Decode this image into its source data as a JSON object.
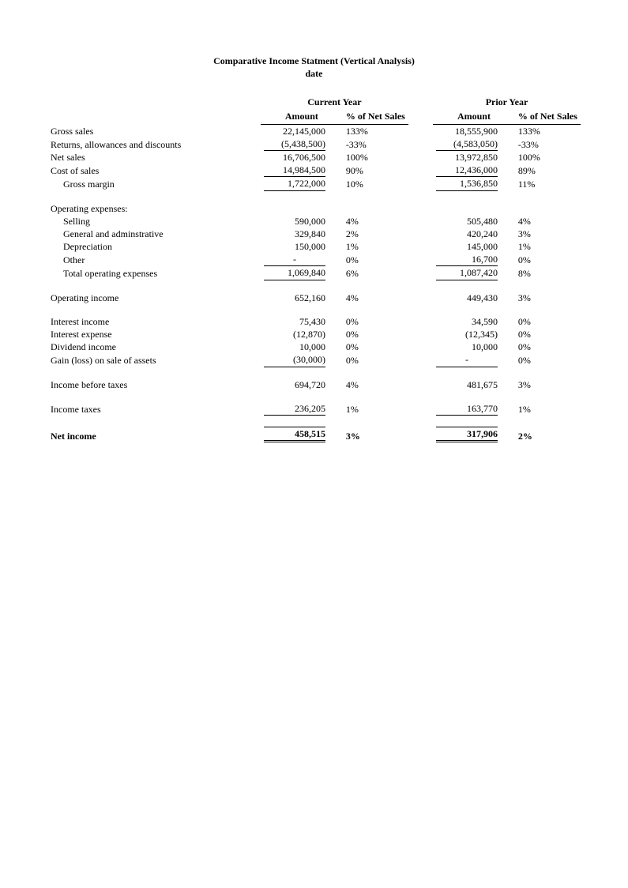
{
  "title": "Comparative Income Statment (Vertical Analysis)",
  "subtitle": "date",
  "headers": {
    "current_year": "Current Year",
    "prior_year": "Prior Year",
    "amount": "Amount",
    "pct": "% of Net Sales"
  },
  "labels": {
    "gross_sales": "Gross sales",
    "returns": "Returns, allowances and discounts",
    "net_sales": "Net sales",
    "cost_of_sales": "Cost of sales",
    "gross_margin": "Gross margin",
    "operating_expenses": "Operating expenses:",
    "selling": "Selling",
    "g_and_a": "General and adminstrative",
    "depreciation": "Depreciation",
    "other": "Other",
    "total_op_exp": "Total operating expenses",
    "operating_income": "Operating income",
    "interest_income": "Interest income",
    "interest_expense": "Interest expense",
    "dividend_income": "Dividend income",
    "gain_loss": "Gain (loss) on sale of assets",
    "income_before_taxes": "Income before taxes",
    "income_taxes": "Income taxes",
    "net_income": "Net income"
  },
  "current": {
    "gross_sales": {
      "amt": "22,145,000",
      "pct": "133%"
    },
    "returns": {
      "amt": "(5,438,500)",
      "pct": "-33%"
    },
    "net_sales": {
      "amt": "16,706,500",
      "pct": "100%"
    },
    "cost_of_sales": {
      "amt": "14,984,500",
      "pct": "90%"
    },
    "gross_margin": {
      "amt": "1,722,000",
      "pct": "10%"
    },
    "selling": {
      "amt": "590,000",
      "pct": "4%"
    },
    "g_and_a": {
      "amt": "329,840",
      "pct": "2%"
    },
    "depreciation": {
      "amt": "150,000",
      "pct": "1%"
    },
    "other": {
      "amt": "-",
      "pct": "0%"
    },
    "total_op_exp": {
      "amt": "1,069,840",
      "pct": "6%"
    },
    "operating_income": {
      "amt": "652,160",
      "pct": "4%"
    },
    "interest_income": {
      "amt": "75,430",
      "pct": "0%"
    },
    "interest_expense": {
      "amt": "(12,870)",
      "pct": "0%"
    },
    "dividend_income": {
      "amt": "10,000",
      "pct": "0%"
    },
    "gain_loss": {
      "amt": "(30,000)",
      "pct": "0%"
    },
    "income_before_taxes": {
      "amt": "694,720",
      "pct": "4%"
    },
    "income_taxes": {
      "amt": "236,205",
      "pct": "1%"
    },
    "net_income": {
      "amt": "458,515",
      "pct": "3%"
    }
  },
  "prior": {
    "gross_sales": {
      "amt": "18,555,900",
      "pct": "133%"
    },
    "returns": {
      "amt": "(4,583,050)",
      "pct": "-33%"
    },
    "net_sales": {
      "amt": "13,972,850",
      "pct": "100%"
    },
    "cost_of_sales": {
      "amt": "12,436,000",
      "pct": "89%"
    },
    "gross_margin": {
      "amt": "1,536,850",
      "pct": "11%"
    },
    "selling": {
      "amt": "505,480",
      "pct": "4%"
    },
    "g_and_a": {
      "amt": "420,240",
      "pct": "3%"
    },
    "depreciation": {
      "amt": "145,000",
      "pct": "1%"
    },
    "other": {
      "amt": "16,700",
      "pct": "0%"
    },
    "total_op_exp": {
      "amt": "1,087,420",
      "pct": "8%"
    },
    "operating_income": {
      "amt": "449,430",
      "pct": "3%"
    },
    "interest_income": {
      "amt": "34,590",
      "pct": "0%"
    },
    "interest_expense": {
      "amt": "(12,345)",
      "pct": "0%"
    },
    "dividend_income": {
      "amt": "10,000",
      "pct": "0%"
    },
    "gain_loss": {
      "amt": "-",
      "pct": "0%"
    },
    "income_before_taxes": {
      "amt": "481,675",
      "pct": "3%"
    },
    "income_taxes": {
      "amt": "163,770",
      "pct": "1%"
    },
    "net_income": {
      "amt": "317,906",
      "pct": "2%"
    }
  },
  "style": {
    "font_family": "Times New Roman",
    "font_size_pt": 9,
    "title_font_size_pt": 10,
    "background_color": "#ffffff",
    "text_color": "#000000",
    "rule_color": "#000000"
  }
}
